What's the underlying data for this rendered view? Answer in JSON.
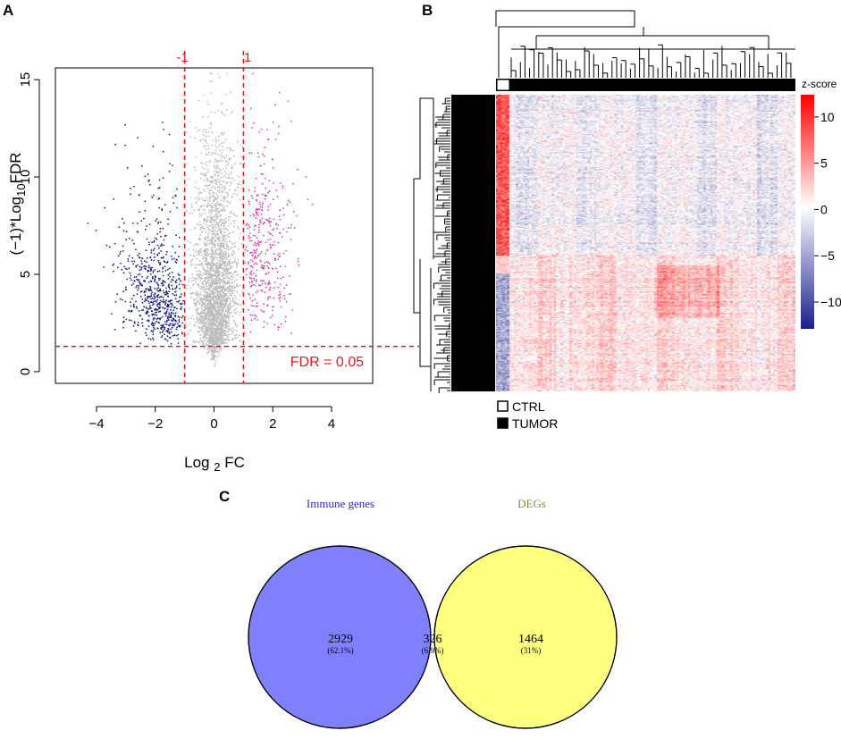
{
  "panels": {
    "a_letter": "A",
    "b_letter": "B",
    "c_letter": "C"
  },
  "chart_data": [
    {
      "id": "volcano",
      "type": "scatter",
      "title": "",
      "xlabel_main": "Log",
      "xlabel_sub": "2",
      "xlabel_tail": "FC",
      "ylabel_main": "(−1)*Log",
      "ylabel_sub": "10",
      "ylabel_tail": "FDR",
      "xlim": [
        -5.4,
        5.4
      ],
      "ylim": [
        -0.6,
        15.6
      ],
      "xticks": [
        -4,
        -2,
        0,
        2,
        4
      ],
      "xtick_labels": [
        "−4",
        "−2",
        "0",
        "2",
        "4"
      ],
      "yticks": [
        0,
        5,
        10,
        15
      ],
      "ytick_labels": [
        "0",
        "5",
        "10",
        "15"
      ],
      "vlines": [
        -1,
        1
      ],
      "vline_labels": [
        "-1",
        "1"
      ],
      "hline": 1.3,
      "hline_label": "FDR = 0.05",
      "colors": {
        "down": "#1a1f8c",
        "up": "#e040a8",
        "ns": "#bdbdbd",
        "threshold": "#e01b1b"
      },
      "series": [
        {
          "name": "down-regulated",
          "color": "#1a1f8c"
        },
        {
          "name": "not significant",
          "color": "#bdbdbd"
        },
        {
          "name": "up-regulated",
          "color": "#e040a8"
        }
      ]
    },
    {
      "id": "heatmap",
      "type": "heatmap",
      "legend_title": "z-score",
      "color_scale": {
        "low": "#1a1f8c",
        "mid": "#ffffff",
        "high": "#ff0000"
      },
      "colorbar_ticks": [
        10,
        5,
        0,
        -5,
        -10
      ],
      "colorbar_labels": [
        "10",
        "5",
        "0",
        "−5",
        "−10"
      ],
      "value_range": [
        -13,
        12
      ],
      "groups": [
        {
          "name": "CTRL",
          "fill": "#ffffff"
        },
        {
          "name": "TUMOR",
          "fill": "#000000"
        }
      ]
    },
    {
      "id": "venn",
      "type": "venn",
      "sets": [
        {
          "name": "Immune genes",
          "color": "#8080ff",
          "label_color": "#2a2ad8"
        },
        {
          "name": "DEGs",
          "color": "#ffff80",
          "label_color": "#8a8a2a"
        }
      ],
      "overlap_color": "#bdbd80",
      "regions": [
        {
          "region": "Immune genes only",
          "count": "2929",
          "percent": "(62.1%)"
        },
        {
          "region": "intersection",
          "count": "326",
          "percent": "(6.9%)"
        },
        {
          "region": "DEGs only",
          "count": "1464",
          "percent": "(31%)"
        }
      ]
    }
  ]
}
